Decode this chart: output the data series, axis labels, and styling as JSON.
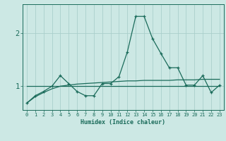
{
  "xlabel": "Humidex (Indice chaleur)",
  "x_values": [
    0,
    1,
    2,
    3,
    4,
    5,
    6,
    7,
    8,
    9,
    10,
    11,
    12,
    13,
    14,
    15,
    16,
    17,
    18,
    19,
    20,
    21,
    22,
    23
  ],
  "y_jagged": [
    0.68,
    0.82,
    0.9,
    1.0,
    1.2,
    1.05,
    0.9,
    0.82,
    0.82,
    1.05,
    1.05,
    1.18,
    1.65,
    2.32,
    2.32,
    1.9,
    1.62,
    1.35,
    1.35,
    1.02,
    1.02,
    1.2,
    0.88,
    1.02
  ],
  "y_smooth": [
    0.68,
    0.8,
    0.88,
    0.95,
    1.0,
    1.02,
    1.04,
    1.05,
    1.06,
    1.07,
    1.08,
    1.09,
    1.1,
    1.1,
    1.11,
    1.11,
    1.11,
    1.11,
    1.12,
    1.12,
    1.12,
    1.13,
    1.13,
    1.13
  ],
  "y_flat": [
    1.0,
    1.0,
    1.0,
    1.0,
    1.0,
    1.0,
    1.0,
    1.0,
    1.0,
    1.0,
    1.0,
    1.0,
    1.0,
    1.0,
    1.0,
    1.0,
    1.0,
    1.0,
    1.0,
    1.0,
    1.0,
    1.0,
    1.0,
    1.0
  ],
  "line_color": "#1a6b5a",
  "bg_color": "#cce8e4",
  "grid_color": "#aacfcc",
  "axis_color": "#1a6b5a",
  "yticks": [
    1,
    2
  ],
  "ylim": [
    0.55,
    2.55
  ],
  "xlim": [
    -0.5,
    23.5
  ]
}
